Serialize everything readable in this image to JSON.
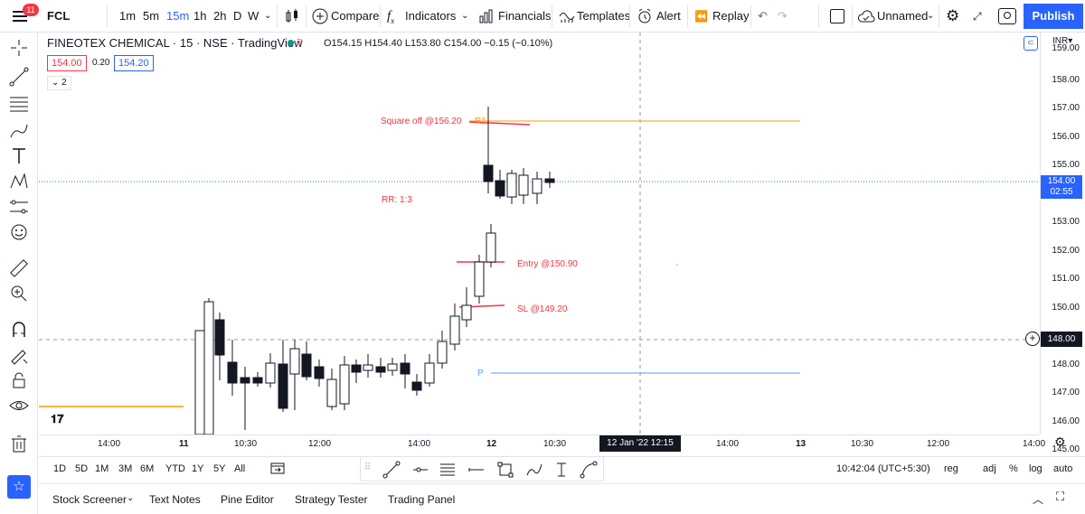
{
  "topbar": {
    "notifications": "11",
    "symbol": "FCL",
    "intervals": [
      "1m",
      "5m",
      "15m",
      "1h",
      "2h",
      "D",
      "W"
    ],
    "active_interval": "15m",
    "compare": "Compare",
    "indicators": "Indicators",
    "financials": "Financials",
    "templates": "Templates",
    "alert": "Alert",
    "replay": "Replay",
    "layout_name": "Unnamed",
    "publish": "Publish"
  },
  "legend": {
    "title": "FINEOTEX CHEMICAL · 15 · NSE · TradingView",
    "ohlc": "O154.15 H154.40 L153.80 C154.00 −0.15 (−0.10%)",
    "bid": "154.00",
    "spread": "0.20",
    "ask": "154.20",
    "collapse": "2"
  },
  "annotations": {
    "square_off": "Square off @156.20",
    "r1": "R1",
    "rr": "RR: 1:3",
    "entry": "Entry @150.90",
    "sl": "SL @149.20",
    "p": "P"
  },
  "price_scale": {
    "currency": "INR",
    "labels": [
      "159.00",
      "158.00",
      "157.00",
      "156.00",
      "155.00",
      "154.00",
      "153.00",
      "152.00",
      "151.00",
      "150.00",
      "149.00",
      "148.00",
      "147.00",
      "146.00",
      "145.00"
    ],
    "last_price": "154.00",
    "countdown": "02:55",
    "crosshair_price": "148.00"
  },
  "time_axis": {
    "labels": [
      "14:00",
      "11",
      "10:30",
      "12:00",
      "14:00",
      "12",
      "10:30",
      "14:00",
      "13",
      "10:30",
      "12:00",
      "14:00"
    ],
    "crosshair_time": "12 Jan '22   12:15"
  },
  "range_bar": {
    "ranges": [
      "1D",
      "5D",
      "1M",
      "3M",
      "6M",
      "YTD",
      "1Y",
      "5Y",
      "All"
    ],
    "clock": "10:42:04 (UTC+5:30)",
    "session": "reg",
    "adj": "adj",
    "pct": "%",
    "log": "log",
    "auto": "auto"
  },
  "bottom_tabs": [
    "Stock Screener",
    "Text Notes",
    "Pine Editor",
    "Strategy Tester",
    "Trading Panel"
  ],
  "colors": {
    "accent": "#2962ff",
    "red": "#f23645",
    "orange": "#ff9800",
    "blue_line": "#5b9cf6",
    "up": "#ffffff",
    "down": "#131722"
  }
}
